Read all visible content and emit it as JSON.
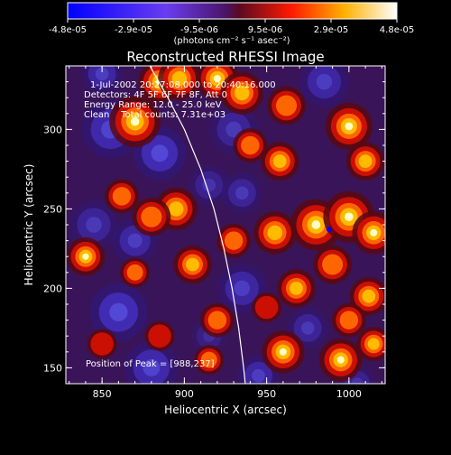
{
  "chart_data": {
    "type": "heatmap",
    "title": "Reconstructed RHESSI Image",
    "xlabel": "Heliocentric X (arcsec)",
    "ylabel": "Heliocentric Y (arcsec)",
    "xlim": [
      828,
      1022
    ],
    "ylim": [
      140,
      340
    ],
    "xticks": [
      850,
      900,
      950,
      1000
    ],
    "yticks": [
      150,
      200,
      250,
      300
    ],
    "colorbar": {
      "ticks": [
        "-4.8e-05",
        "-2.9e-05",
        "-9.5e-06",
        "9.5e-06",
        "2.9e-05",
        "4.8e-05"
      ],
      "unit_label": "(photons cm⁻² s⁻¹ asec⁻²)",
      "range": [
        -4.8e-05,
        4.8e-05
      ]
    },
    "annotations": {
      "time_range": "1-Jul-2002 20:27:08.000 to 20:40:16.000",
      "detectors": "Detectors: 4F 5F 6F 7F 8F, Att 0",
      "energy_range": "Energy Range: 12.0 - 25.0 keV",
      "clean_counts": "Clean    Total counts: 7.31e+03",
      "peak": "Position of Peak = [988,237]"
    },
    "peak_position": [
      988,
      237
    ],
    "limb_curve": [
      [
        879,
        340
      ],
      [
        890,
        320
      ],
      [
        900,
        300
      ],
      [
        910,
        275
      ],
      [
        918,
        250
      ],
      [
        924,
        225
      ],
      [
        929,
        200
      ],
      [
        933,
        175
      ],
      [
        936,
        150
      ],
      [
        937,
        140
      ]
    ],
    "blobs": [
      [
        870,
        305,
        1.0,
        12
      ],
      [
        885,
        330,
        0.9,
        10
      ],
      [
        897,
        332,
        0.85,
        10
      ],
      [
        920,
        332,
        0.9,
        10
      ],
      [
        935,
        323,
        0.8,
        10
      ],
      [
        1000,
        302,
        0.95,
        11
      ],
      [
        1010,
        280,
        0.8,
        9
      ],
      [
        962,
        315,
        0.6,
        9
      ],
      [
        958,
        280,
        0.7,
        9
      ],
      [
        940,
        290,
        0.5,
        8
      ],
      [
        895,
        250,
        0.7,
        10
      ],
      [
        880,
        245,
        0.6,
        9
      ],
      [
        862,
        258,
        0.5,
        8
      ],
      [
        840,
        220,
        0.9,
        9
      ],
      [
        870,
        210,
        0.5,
        7
      ],
      [
        930,
        230,
        0.5,
        8
      ],
      [
        955,
        235,
        0.75,
        10
      ],
      [
        980,
        240,
        1.0,
        12
      ],
      [
        1000,
        245,
        1.0,
        12
      ],
      [
        1015,
        235,
        0.9,
        10
      ],
      [
        905,
        215,
        0.8,
        9
      ],
      [
        990,
        215,
        0.6,
        9
      ],
      [
        968,
        200,
        0.85,
        9
      ],
      [
        1012,
        195,
        0.7,
        9
      ],
      [
        920,
        180,
        0.6,
        8
      ],
      [
        950,
        188,
        0.4,
        7
      ],
      [
        1000,
        180,
        0.5,
        8
      ],
      [
        885,
        170,
        0.4,
        7
      ],
      [
        960,
        160,
        0.9,
        10
      ],
      [
        995,
        155,
        0.9,
        10
      ],
      [
        1015,
        165,
        0.7,
        8
      ],
      [
        915,
        155,
        0.5,
        7
      ],
      [
        850,
        165,
        0.3,
        7
      ],
      [
        855,
        300,
        -0.8,
        14
      ],
      [
        850,
        335,
        -0.7,
        10
      ],
      [
        885,
        285,
        -0.9,
        13
      ],
      [
        930,
        300,
        -0.6,
        12
      ],
      [
        985,
        330,
        -0.7,
        12
      ],
      [
        845,
        240,
        -0.6,
        12
      ],
      [
        870,
        230,
        -0.7,
        11
      ],
      [
        915,
        265,
        -0.5,
        10
      ],
      [
        935,
        260,
        -0.6,
        10
      ],
      [
        860,
        185,
        -0.9,
        14
      ],
      [
        880,
        150,
        -0.8,
        13
      ],
      [
        935,
        200,
        -0.7,
        12
      ],
      [
        915,
        170,
        -0.4,
        9
      ],
      [
        975,
        175,
        -0.6,
        10
      ],
      [
        945,
        145,
        -0.7,
        10
      ],
      [
        1005,
        140,
        -0.5,
        9
      ]
    ]
  }
}
